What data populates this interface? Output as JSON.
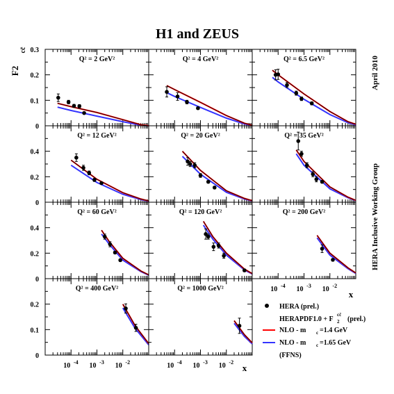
{
  "chart_data": {
    "type": "scatter",
    "title": "H1 and ZEUS",
    "ylabel": "F2",
    "ylabel_sup": "cc̄",
    "xlabel": "x",
    "x_scale": "log",
    "xlim": [
      1e-05,
      0.1
    ],
    "side_labels": [
      "April 2010",
      "HERA Inclusive Working Group"
    ],
    "legend": {
      "data": "HERA (prel.)",
      "fit": "HERAPDF1.0 + F",
      "fit_sub": "2",
      "fit_sup": "cc̄",
      "fit_tail": "(prel.)",
      "nlo_red": "NLO  -  m",
      "nlo_red_sub": "c",
      "nlo_red_val": "=1.4 GeV",
      "nlo_blue": "NLO  -  m",
      "nlo_blue_sub": "c",
      "nlo_blue_val": "=1.65 GeV",
      "scheme": "(FFNS)"
    },
    "colors": {
      "data": "#000000",
      "fit": "#000000",
      "nlo_red": "#ff0000",
      "nlo_blue": "#3333ff"
    },
    "panels": [
      {
        "q2": "Q² = 2 GeV²",
        "ylim": [
          0,
          0.3
        ],
        "yticks": [
          "0",
          "0.1",
          "0.2",
          "0.3"
        ],
        "points": [
          {
            "x": 3.2e-05,
            "y": 0.11,
            "e": 0.015
          },
          {
            "x": 8e-05,
            "y": 0.093,
            "e": 0.007
          },
          {
            "x": 0.00013,
            "y": 0.078,
            "e": 0.006
          },
          {
            "x": 0.00021,
            "y": 0.077,
            "e": 0.006
          },
          {
            "x": 0.00032,
            "y": 0.05,
            "e": 0.004
          }
        ],
        "band": [
          {
            "x": 3e-05,
            "y": 0.088
          },
          {
            "x": 0.0001,
            "y": 0.075
          },
          {
            "x": 0.001,
            "y": 0.052
          },
          {
            "x": 0.01,
            "y": 0.024
          },
          {
            "x": 0.05,
            "y": 0.004
          },
          {
            "x": 0.1,
            "y": 0
          }
        ],
        "nlo_red": [
          {
            "x": 3e-05,
            "y": 0.088
          },
          {
            "x": 0.0001,
            "y": 0.075
          },
          {
            "x": 0.001,
            "y": 0.052
          },
          {
            "x": 0.01,
            "y": 0.024
          },
          {
            "x": 0.05,
            "y": 0.004
          },
          {
            "x": 0.1,
            "y": 0
          }
        ],
        "nlo_blue": [
          {
            "x": 3e-05,
            "y": 0.073
          },
          {
            "x": 0.0001,
            "y": 0.06
          },
          {
            "x": 0.001,
            "y": 0.038
          },
          {
            "x": 0.01,
            "y": 0.016
          },
          {
            "x": 0.05,
            "y": 0.002
          },
          {
            "x": 0.1,
            "y": 0
          }
        ]
      },
      {
        "q2": "Q² = 4 GeV²",
        "ylim": [
          0,
          0.3
        ],
        "yticks": [],
        "points": [
          {
            "x": 5e-05,
            "y": 0.133,
            "e": 0.02
          },
          {
            "x": 0.00013,
            "y": 0.115,
            "e": 0.015
          },
          {
            "x": 0.0003,
            "y": 0.093,
            "e": 0.007
          },
          {
            "x": 0.0008,
            "y": 0.069,
            "e": 0.005
          }
        ],
        "band": [
          {
            "x": 5e-05,
            "y": 0.158
          },
          {
            "x": 0.0001,
            "y": 0.142
          },
          {
            "x": 0.001,
            "y": 0.092
          },
          {
            "x": 0.01,
            "y": 0.04
          },
          {
            "x": 0.05,
            "y": 0.01
          },
          {
            "x": 0.1,
            "y": 0.002
          }
        ],
        "nlo_red": [
          {
            "x": 5e-05,
            "y": 0.158
          },
          {
            "x": 0.0001,
            "y": 0.142
          },
          {
            "x": 0.001,
            "y": 0.092
          },
          {
            "x": 0.01,
            "y": 0.04
          },
          {
            "x": 0.05,
            "y": 0.01
          },
          {
            "x": 0.1,
            "y": 0.002
          }
        ],
        "nlo_blue": [
          {
            "x": 5e-05,
            "y": 0.13
          },
          {
            "x": 0.0001,
            "y": 0.115
          },
          {
            "x": 0.001,
            "y": 0.072
          },
          {
            "x": 0.01,
            "y": 0.03
          },
          {
            "x": 0.05,
            "y": 0.007
          },
          {
            "x": 0.1,
            "y": 0.001
          }
        ]
      },
      {
        "q2": "Q² = 6.5 GeV²",
        "ylim": [
          0,
          0.3
        ],
        "yticks": [],
        "points": [
          {
            "x": 8e-05,
            "y": 0.2,
            "e": 0.02
          },
          {
            "x": 0.0001,
            "y": 0.202,
            "e": 0.02
          },
          {
            "x": 0.00022,
            "y": 0.16,
            "e": 0.01
          },
          {
            "x": 0.0005,
            "y": 0.128,
            "e": 0.008
          },
          {
            "x": 0.0008,
            "y": 0.106,
            "e": 0.007
          },
          {
            "x": 0.002,
            "y": 0.088,
            "e": 0.006
          }
        ],
        "band": [
          {
            "x": 6e-05,
            "y": 0.218
          },
          {
            "x": 0.0001,
            "y": 0.2
          },
          {
            "x": 0.001,
            "y": 0.125
          },
          {
            "x": 0.01,
            "y": 0.056
          },
          {
            "x": 0.05,
            "y": 0.016
          },
          {
            "x": 0.1,
            "y": 0.006
          }
        ],
        "nlo_red": [
          {
            "x": 6e-05,
            "y": 0.218
          },
          {
            "x": 0.0001,
            "y": 0.2
          },
          {
            "x": 0.001,
            "y": 0.125
          },
          {
            "x": 0.01,
            "y": 0.056
          },
          {
            "x": 0.05,
            "y": 0.016
          },
          {
            "x": 0.1,
            "y": 0.006
          }
        ],
        "nlo_blue": [
          {
            "x": 6e-05,
            "y": 0.19
          },
          {
            "x": 0.0001,
            "y": 0.172
          },
          {
            "x": 0.001,
            "y": 0.104
          },
          {
            "x": 0.01,
            "y": 0.044
          },
          {
            "x": 0.05,
            "y": 0.012
          },
          {
            "x": 0.1,
            "y": 0.004
          }
        ]
      },
      {
        "q2": "Q² = 12 GeV²",
        "ylim": [
          0,
          0.6
        ],
        "yticks": [
          "0",
          "0.2",
          "0.4"
        ],
        "points": [
          {
            "x": 0.00016,
            "y": 0.35,
            "e": 0.03
          },
          {
            "x": 0.0003,
            "y": 0.27,
            "e": 0.02
          },
          {
            "x": 0.0005,
            "y": 0.23,
            "e": 0.015
          },
          {
            "x": 0.0008,
            "y": 0.175,
            "e": 0.012
          },
          {
            "x": 0.0015,
            "y": 0.15,
            "e": 0.008
          }
        ],
        "band": [
          {
            "x": 0.0001,
            "y": 0.33
          },
          {
            "x": 0.001,
            "y": 0.18
          },
          {
            "x": 0.01,
            "y": 0.075
          },
          {
            "x": 0.05,
            "y": 0.025
          },
          {
            "x": 0.1,
            "y": 0.01
          }
        ],
        "nlo_red": [
          {
            "x": 0.0001,
            "y": 0.33
          },
          {
            "x": 0.001,
            "y": 0.18
          },
          {
            "x": 0.01,
            "y": 0.075
          },
          {
            "x": 0.05,
            "y": 0.025
          },
          {
            "x": 0.1,
            "y": 0.01
          }
        ],
        "nlo_blue": [
          {
            "x": 0.0001,
            "y": 0.29
          },
          {
            "x": 0.001,
            "y": 0.155
          },
          {
            "x": 0.01,
            "y": 0.062
          },
          {
            "x": 0.05,
            "y": 0.02
          },
          {
            "x": 0.1,
            "y": 0.008
          }
        ]
      },
      {
        "q2": "Q² = 20 GeV²",
        "ylim": [
          0,
          0.6
        ],
        "yticks": [],
        "points": [
          {
            "x": 0.00032,
            "y": 0.32,
            "e": 0.03
          },
          {
            "x": 0.0004,
            "y": 0.3,
            "e": 0.02
          },
          {
            "x": 0.0006,
            "y": 0.29,
            "e": 0.02
          },
          {
            "x": 0.001,
            "y": 0.21,
            "e": 0.015
          },
          {
            "x": 0.002,
            "y": 0.16,
            "e": 0.01
          },
          {
            "x": 0.0035,
            "y": 0.115,
            "e": 0.01
          }
        ],
        "band": [
          {
            "x": 0.0002,
            "y": 0.4
          },
          {
            "x": 0.001,
            "y": 0.25
          },
          {
            "x": 0.01,
            "y": 0.09
          },
          {
            "x": 0.05,
            "y": 0.03
          },
          {
            "x": 0.1,
            "y": 0.012
          }
        ],
        "nlo_red": [
          {
            "x": 0.0002,
            "y": 0.4
          },
          {
            "x": 0.001,
            "y": 0.25
          },
          {
            "x": 0.01,
            "y": 0.09
          },
          {
            "x": 0.05,
            "y": 0.03
          },
          {
            "x": 0.1,
            "y": 0.012
          }
        ],
        "nlo_blue": [
          {
            "x": 0.0002,
            "y": 0.36
          },
          {
            "x": 0.001,
            "y": 0.22
          },
          {
            "x": 0.01,
            "y": 0.078
          },
          {
            "x": 0.05,
            "y": 0.025
          },
          {
            "x": 0.1,
            "y": 0.01
          }
        ]
      },
      {
        "q2": "Q² = 35 GeV²",
        "ylim": [
          0,
          0.6
        ],
        "yticks": [],
        "points": [
          {
            "x": 0.0006,
            "y": 0.48,
            "e": 0.07
          },
          {
            "x": 0.0008,
            "y": 0.38,
            "e": 0.02
          },
          {
            "x": 0.0013,
            "y": 0.29,
            "e": 0.02
          },
          {
            "x": 0.0022,
            "y": 0.22,
            "e": 0.02
          },
          {
            "x": 0.003,
            "y": 0.18,
            "e": 0.02
          },
          {
            "x": 0.005,
            "y": 0.16,
            "e": 0.01
          }
        ],
        "band": [
          {
            "x": 0.0005,
            "y": 0.41
          },
          {
            "x": 0.001,
            "y": 0.32
          },
          {
            "x": 0.01,
            "y": 0.12
          },
          {
            "x": 0.05,
            "y": 0.04
          },
          {
            "x": 0.1,
            "y": 0.015
          }
        ],
        "nlo_red": [
          {
            "x": 0.0005,
            "y": 0.41
          },
          {
            "x": 0.001,
            "y": 0.32
          },
          {
            "x": 0.01,
            "y": 0.12
          },
          {
            "x": 0.05,
            "y": 0.04
          },
          {
            "x": 0.1,
            "y": 0.015
          }
        ],
        "nlo_blue": [
          {
            "x": 0.0005,
            "y": 0.38
          },
          {
            "x": 0.001,
            "y": 0.29
          },
          {
            "x": 0.01,
            "y": 0.105
          },
          {
            "x": 0.05,
            "y": 0.035
          },
          {
            "x": 0.1,
            "y": 0.013
          }
        ]
      },
      {
        "q2": "Q² = 60 GeV²",
        "ylim": [
          0,
          0.6
        ],
        "yticks": [
          "0",
          "0.2",
          "0.4"
        ],
        "points": [
          {
            "x": 0.002,
            "y": 0.33,
            "e": 0.02
          },
          {
            "x": 0.0032,
            "y": 0.27,
            "e": 0.02
          },
          {
            "x": 0.005,
            "y": 0.205,
            "e": 0.01
          },
          {
            "x": 0.008,
            "y": 0.145,
            "e": 0.01
          }
        ],
        "band": [
          {
            "x": 0.0015,
            "y": 0.38
          },
          {
            "x": 0.003,
            "y": 0.29
          },
          {
            "x": 0.01,
            "y": 0.16
          },
          {
            "x": 0.05,
            "y": 0.06
          },
          {
            "x": 0.1,
            "y": 0.03
          }
        ],
        "nlo_red": [
          {
            "x": 0.0015,
            "y": 0.38
          },
          {
            "x": 0.003,
            "y": 0.29
          },
          {
            "x": 0.01,
            "y": 0.16
          },
          {
            "x": 0.05,
            "y": 0.06
          },
          {
            "x": 0.1,
            "y": 0.03
          }
        ],
        "nlo_blue": [
          {
            "x": 0.0015,
            "y": 0.35
          },
          {
            "x": 0.003,
            "y": 0.27
          },
          {
            "x": 0.01,
            "y": 0.145
          },
          {
            "x": 0.05,
            "y": 0.055
          },
          {
            "x": 0.1,
            "y": 0.027
          }
        ]
      },
      {
        "q2": "Q² = 120 GeV²",
        "ylim": [
          0,
          0.6
        ],
        "yticks": [],
        "points": [
          {
            "x": 0.0016,
            "y": 0.35,
            "e": 0.04
          },
          {
            "x": 0.002,
            "y": 0.33,
            "e": 0.02
          },
          {
            "x": 0.0032,
            "y": 0.25,
            "e": 0.03
          },
          {
            "x": 0.005,
            "y": 0.26,
            "e": 0.02
          },
          {
            "x": 0.008,
            "y": 0.18,
            "e": 0.02
          },
          {
            "x": 0.05,
            "y": 0.065,
            "e": 0.01
          }
        ],
        "band": [
          {
            "x": 0.0013,
            "y": 0.45
          },
          {
            "x": 0.003,
            "y": 0.33
          },
          {
            "x": 0.01,
            "y": 0.2
          },
          {
            "x": 0.05,
            "y": 0.075
          },
          {
            "x": 0.1,
            "y": 0.04
          }
        ],
        "nlo_red": [
          {
            "x": 0.0013,
            "y": 0.45
          },
          {
            "x": 0.003,
            "y": 0.33
          },
          {
            "x": 0.01,
            "y": 0.2
          },
          {
            "x": 0.05,
            "y": 0.075
          },
          {
            "x": 0.1,
            "y": 0.04
          }
        ],
        "nlo_blue": [
          {
            "x": 0.0013,
            "y": 0.42
          },
          {
            "x": 0.003,
            "y": 0.31
          },
          {
            "x": 0.01,
            "y": 0.185
          },
          {
            "x": 0.05,
            "y": 0.068
          },
          {
            "x": 0.1,
            "y": 0.036
          }
        ]
      },
      {
        "q2": "Q² = 200 GeV²",
        "ylim": [
          0,
          0.6
        ],
        "yticks": [],
        "points": [
          {
            "x": 0.005,
            "y": 0.235,
            "e": 0.03
          },
          {
            "x": 0.013,
            "y": 0.148,
            "e": 0.01
          }
        ],
        "band": [
          {
            "x": 0.0032,
            "y": 0.34
          },
          {
            "x": 0.01,
            "y": 0.2
          },
          {
            "x": 0.05,
            "y": 0.085
          },
          {
            "x": 0.1,
            "y": 0.045
          }
        ],
        "nlo_red": [
          {
            "x": 0.0032,
            "y": 0.34
          },
          {
            "x": 0.01,
            "y": 0.2
          },
          {
            "x": 0.05,
            "y": 0.085
          },
          {
            "x": 0.1,
            "y": 0.045
          }
        ],
        "nlo_blue": [
          {
            "x": 0.0032,
            "y": 0.32
          },
          {
            "x": 0.01,
            "y": 0.185
          },
          {
            "x": 0.05,
            "y": 0.078
          },
          {
            "x": 0.1,
            "y": 0.041
          }
        ]
      },
      {
        "q2": "Q² = 400 GeV²",
        "ylim": [
          0,
          0.3
        ],
        "yticks": [
          "0",
          "0.1",
          "0.2"
        ],
        "points": [
          {
            "x": 0.013,
            "y": 0.183,
            "e": 0.018
          },
          {
            "x": 0.032,
            "y": 0.107,
            "e": 0.014
          }
        ],
        "band": [
          {
            "x": 0.01,
            "y": 0.2
          },
          {
            "x": 0.03,
            "y": 0.115
          },
          {
            "x": 0.1,
            "y": 0.045
          }
        ],
        "nlo_red": [
          {
            "x": 0.01,
            "y": 0.2
          },
          {
            "x": 0.03,
            "y": 0.115
          },
          {
            "x": 0.1,
            "y": 0.045
          }
        ],
        "nlo_blue": [
          {
            "x": 0.01,
            "y": 0.185
          },
          {
            "x": 0.03,
            "y": 0.105
          },
          {
            "x": 0.1,
            "y": 0.04
          }
        ]
      },
      {
        "q2": "Q² = 1000 GeV²",
        "ylim": [
          0,
          0.3
        ],
        "yticks": [],
        "points": [
          {
            "x": 0.032,
            "y": 0.115,
            "e": 0.03
          }
        ],
        "band": [
          {
            "x": 0.02,
            "y": 0.135
          },
          {
            "x": 0.05,
            "y": 0.08
          },
          {
            "x": 0.1,
            "y": 0.048
          }
        ],
        "nlo_red": [
          {
            "x": 0.02,
            "y": 0.135
          },
          {
            "x": 0.05,
            "y": 0.08
          },
          {
            "x": 0.1,
            "y": 0.048
          }
        ],
        "nlo_blue": [
          {
            "x": 0.02,
            "y": 0.125
          },
          {
            "x": 0.05,
            "y": 0.073
          },
          {
            "x": 0.1,
            "y": 0.044
          }
        ]
      }
    ],
    "xticks": [
      {
        "base": "10",
        "exp": "-4",
        "value": 0.0001
      },
      {
        "base": "10",
        "exp": "-3",
        "value": 0.001
      },
      {
        "base": "10",
        "exp": "-2",
        "value": 0.01
      }
    ]
  }
}
